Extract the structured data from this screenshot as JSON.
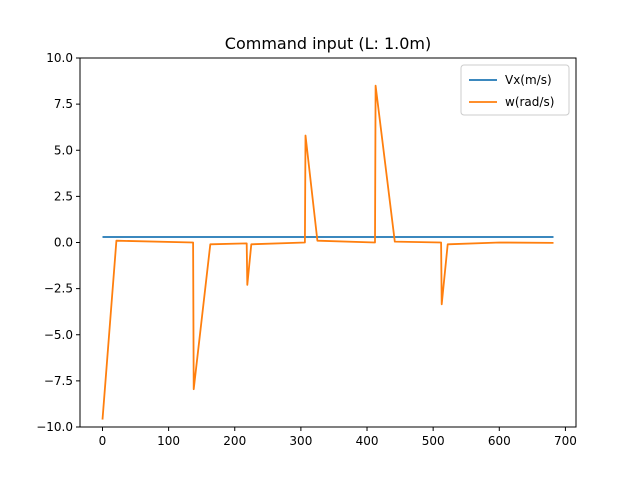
{
  "chart_data": {
    "type": "line",
    "title": "Command input (L: 1.0m)",
    "xlabel": "",
    "ylabel": "",
    "xlim": [
      -34,
      716
    ],
    "ylim": [
      -10,
      10
    ],
    "x_ticks": [
      0,
      100,
      200,
      300,
      400,
      500,
      600,
      700
    ],
    "y_ticks": [
      -10.0,
      -7.5,
      -5.0,
      -2.5,
      0.0,
      2.5,
      5.0,
      7.5,
      10.0
    ],
    "x_tick_labels": [
      "0",
      "100",
      "200",
      "300",
      "400",
      "500",
      "600",
      "700"
    ],
    "y_tick_labels": [
      "−10.0",
      "−7.5",
      "−5.0",
      "−2.5",
      "0.0",
      "2.5",
      "5.0",
      "7.5",
      "10.0"
    ],
    "grid": false,
    "legend_position": "top-right",
    "series": [
      {
        "name": "Vx(m/s)",
        "color": "#1f77b4",
        "x": [
          0,
          682
        ],
        "y": [
          0.3,
          0.3
        ]
      },
      {
        "name": "w(rad/s)",
        "color": "#ff7f0e",
        "x": [
          0,
          21,
          137,
          138,
          163,
          218,
          219,
          225,
          306,
          307,
          325,
          412,
          413,
          442,
          512,
          513,
          522,
          600,
          682
        ],
        "y": [
          -9.6,
          0.1,
          0.0,
          -7.95,
          -0.1,
          -0.05,
          -2.3,
          -0.1,
          0.0,
          5.8,
          0.1,
          0.0,
          8.5,
          0.05,
          0.0,
          -3.35,
          -0.1,
          0.0,
          -0.02
        ]
      }
    ]
  }
}
